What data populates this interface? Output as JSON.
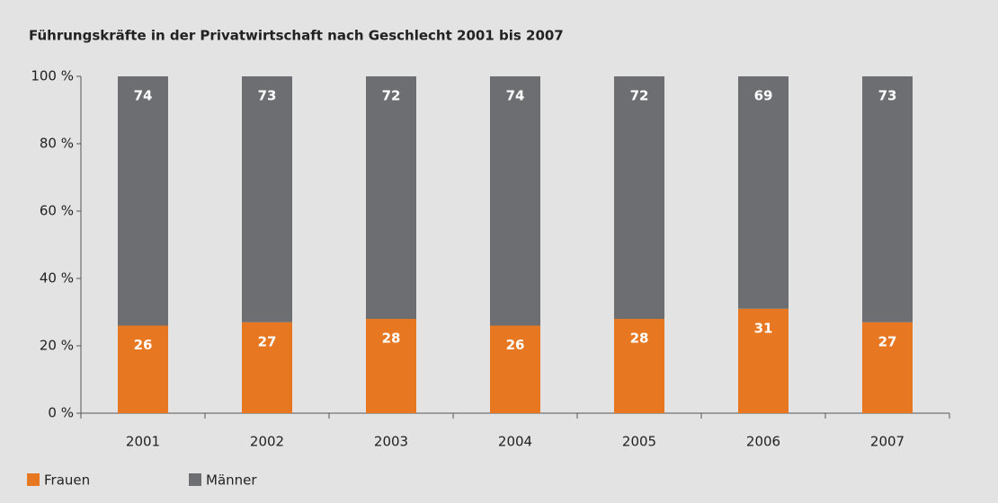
{
  "chart_data": {
    "type": "stacked_bar",
    "title": "Führungskräfte in der Privatwirtschaft nach Geschlecht 2001 bis 2007",
    "categories": [
      "2001",
      "2002",
      "2003",
      "2004",
      "2005",
      "2006",
      "2007"
    ],
    "series": [
      {
        "name": "Frauen",
        "color": "#e87722",
        "values": [
          26,
          27,
          28,
          26,
          28,
          31,
          27
        ]
      },
      {
        "name": "Männer",
        "color": "#6d6e71",
        "values": [
          74,
          73,
          72,
          74,
          72,
          69,
          73
        ]
      }
    ],
    "ylim": [
      0,
      100
    ],
    "yticks": [
      {
        "value": 0,
        "label": "0 %"
      },
      {
        "value": 20,
        "label": "20 %"
      },
      {
        "value": 40,
        "label": "40 %"
      },
      {
        "value": 60,
        "label": "60 %"
      },
      {
        "value": 80,
        "label": "80 %"
      },
      {
        "value": 100,
        "label": "100 %"
      }
    ],
    "legend": "bottom-left"
  }
}
